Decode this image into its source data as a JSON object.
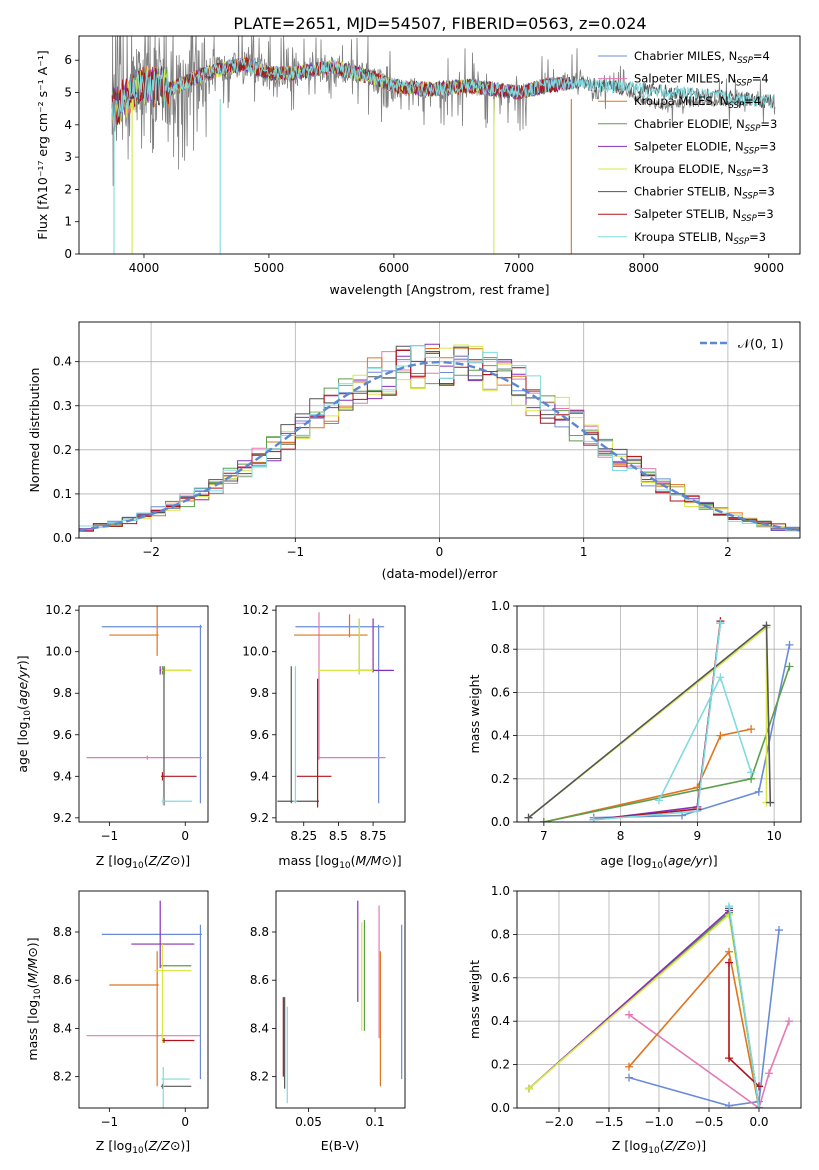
{
  "title": "PLATE=2651, MJD=54507, FIBERID=0563, z=0.024",
  "series_styles": [
    {
      "name": "Chabrier MILES",
      "nssp": "4",
      "color": "#6a8cd8"
    },
    {
      "name": "Salpeter MILES",
      "nssp": "4",
      "color": "#e47ab5"
    },
    {
      "name": "Kroupa MILES",
      "nssp": "4",
      "color": "#e0741e"
    },
    {
      "name": "Chabrier ELODIE",
      "nssp": "3",
      "color": "#5d9e4e"
    },
    {
      "name": "Salpeter ELODIE",
      "nssp": "3",
      "color": "#8b2fb8"
    },
    {
      "name": "Kroupa ELODIE",
      "nssp": "3",
      "color": "#d6e84a"
    },
    {
      "name": "Chabrier STELIB",
      "nssp": "3",
      "color": "#555555"
    },
    {
      "name": "Salpeter STELIB",
      "nssp": "3",
      "color": "#b0141a"
    },
    {
      "name": "Kroupa STELIB",
      "nssp": "3",
      "color": "#7fdbe0"
    }
  ],
  "chart_data": [
    {
      "id": "spectrum",
      "type": "line",
      "xlabel": "wavelength [Angstrom, rest frame]",
      "ylabel": "Flux [fλ10⁻¹⁷ erg cm⁻² s⁻¹ A⁻¹]",
      "xlim": [
        3480,
        9250
      ],
      "ylim": [
        0,
        6.75
      ],
      "xticks": [
        4000,
        5000,
        6000,
        7000,
        8000,
        9000
      ],
      "yticks": [
        0,
        1,
        2,
        3,
        4,
        5,
        6
      ],
      "legend": "upper right",
      "data_segment": {
        "x": [
          3750,
          4000,
          4200,
          4500,
          4800,
          5000,
          5200,
          5500,
          5800,
          6000,
          6300,
          6600,
          7000,
          7200,
          7500,
          7800,
          8100,
          8400,
          8700,
          9000
        ],
        "y": [
          4.6,
          5.4,
          5.0,
          5.6,
          5.9,
          5.5,
          5.6,
          5.8,
          5.5,
          5.1,
          5.1,
          5.2,
          5.0,
          5.2,
          5.4,
          5.1,
          4.6,
          4.7,
          4.7,
          4.7
        ]
      },
      "model_segment": {
        "x": [
          3750,
          4000,
          4200,
          4500,
          4800,
          5000,
          5200,
          5500,
          5800,
          6000,
          6300,
          6600,
          7000,
          7200,
          7420
        ],
        "y": [
          4.5,
          5.3,
          5.1,
          5.6,
          5.9,
          5.6,
          5.6,
          5.8,
          5.5,
          5.2,
          5.1,
          5.2,
          5.0,
          5.2,
          5.3
        ]
      }
    },
    {
      "id": "residual_hist",
      "type": "step",
      "xlabel": "(data-model)/error",
      "ylabel": "Normed distribution",
      "xlim": [
        -2.5,
        2.5
      ],
      "ylim": [
        0,
        0.49
      ],
      "xticks": [
        -2,
        -1,
        0,
        1,
        2
      ],
      "yticks": [
        0,
        0.1,
        0.2,
        0.3,
        0.4
      ],
      "bin_width": 0.1,
      "reference_label": "𝒩(0, 1)",
      "legend": "upper right"
    },
    {
      "id": "age_vs_Z",
      "type": "errorbar",
      "xlabel": "Z [log10(Z/Z⊙)]",
      "ylabel": "age  [log10(age/yr)]",
      "xlim": [
        -1.4,
        0.3
      ],
      "ylim": [
        9.18,
        10.22
      ],
      "xticks": [
        -1,
        0
      ],
      "yticks": [
        9.2,
        9.4,
        9.6,
        9.8,
        10.0,
        10.2
      ],
      "points": [
        {
          "x": 0.2,
          "y": 10.12,
          "xerr": [
            1.3,
            0.02
          ],
          "yerr": [
            0.85,
            0.01
          ]
        },
        {
          "x": -0.5,
          "y": 9.49,
          "xerr": [
            0.8,
            0.72
          ],
          "yerr": [
            0.01,
            0.01
          ]
        },
        {
          "x": -0.37,
          "y": 10.08,
          "xerr": [
            0.63,
            0.02
          ],
          "yerr": [
            0.1,
            0.9
          ]
        },
        {
          "x": -0.3,
          "y": 9.91,
          "xerr": [
            0.02,
            0.38
          ],
          "yerr": [
            0.02,
            0.02
          ]
        },
        {
          "x": -0.33,
          "y": 9.91,
          "xerr": [
            0.01,
            0.02
          ],
          "yerr": [
            0.02,
            0.02
          ]
        },
        {
          "x": -0.27,
          "y": 9.91,
          "xerr": [
            0.05,
            0.35
          ],
          "yerr": [
            0.02,
            0.02
          ]
        },
        {
          "x": -0.28,
          "y": 9.28,
          "xerr": [
            0.01,
            0.02
          ],
          "yerr": [
            0.02,
            0.65
          ]
        },
        {
          "x": -0.3,
          "y": 9.4,
          "xerr": [
            0.02,
            0.45
          ],
          "yerr": [
            0.02,
            0.02
          ]
        },
        {
          "x": -0.29,
          "y": 9.28,
          "xerr": [
            0.02,
            0.38
          ],
          "yerr": [
            0.02,
            0.02
          ]
        }
      ]
    },
    {
      "id": "age_vs_mass",
      "type": "errorbar",
      "xlabel": "mass [log10(M/M⊙)]",
      "ylabel": "",
      "xlim": [
        8.05,
        8.98
      ],
      "ylim": [
        9.18,
        10.22
      ],
      "xticks": [
        8.25,
        8.5,
        8.75
      ],
      "yticks": [
        9.2,
        9.4,
        9.6,
        9.8,
        10.0,
        10.2
      ],
      "points": [
        {
          "x": 8.79,
          "y": 10.12,
          "xerr": [
            0.6,
            0.04
          ],
          "yerr": [
            0.85,
            0.01
          ]
        },
        {
          "x": 8.36,
          "y": 9.49,
          "xerr": [
            0.01,
            0.48
          ],
          "yerr": [
            0.01,
            0.7
          ]
        },
        {
          "x": 8.58,
          "y": 10.08,
          "xerr": [
            0.4,
            0.13
          ],
          "yerr": [
            0.01,
            0.1
          ]
        },
        {
          "x": 8.65,
          "y": 9.91,
          "xerr": [
            0.01,
            0.01
          ],
          "yerr": [
            0.02,
            0.25
          ]
        },
        {
          "x": 8.75,
          "y": 9.91,
          "xerr": [
            0.1,
            0.15
          ],
          "yerr": [
            0.01,
            0.25
          ]
        },
        {
          "x": 8.65,
          "y": 9.91,
          "xerr": [
            0.3,
            0.1
          ],
          "yerr": [
            0.02,
            0.25
          ]
        },
        {
          "x": 8.16,
          "y": 9.28,
          "xerr": [
            0.1,
            0.2
          ],
          "yerr": [
            0.01,
            0.65
          ]
        },
        {
          "x": 8.35,
          "y": 9.4,
          "xerr": [
            0.15,
            0.1
          ],
          "yerr": [
            0.15,
            0.47
          ]
        },
        {
          "x": 8.19,
          "y": 9.28,
          "xerr": [
            0.02,
            0.01
          ],
          "yerr": [
            0.01,
            0.65
          ]
        }
      ]
    },
    {
      "id": "weight_vs_age",
      "type": "line",
      "xlabel": "age  [log10(age/yr)]",
      "ylabel": "mass weight",
      "xlim": [
        6.65,
        10.35
      ],
      "ylim": [
        0,
        1
      ],
      "xticks": [
        7,
        8,
        9,
        10
      ],
      "yticks": [
        0,
        0.2,
        0.4,
        0.6,
        0.8,
        1.0
      ],
      "series": [
        {
          "x": [
            7.65,
            8.8,
            9.8,
            10.2
          ],
          "y": [
            0.02,
            0.03,
            0.14,
            0.82
          ]
        },
        {
          "x": 7.0,
          "y": 0
        },
        {
          "x": [
            7.0,
            9.0,
            9.3,
            9.7
          ],
          "y": [
            0.0,
            0.16,
            0.4,
            0.43
          ]
        },
        {
          "x": [
            7.0,
            9.7,
            10.2
          ],
          "y": [
            0.0,
            0.2,
            0.72
          ]
        },
        {
          "x": [
            7.65,
            9.0,
            9.3
          ],
          "y": [
            0.01,
            0.07,
            0.92
          ]
        },
        {
          "x": [
            6.8,
            9.9,
            9.9
          ],
          "y": [
            0.02,
            0.9,
            0.09
          ]
        },
        {
          "x": [
            6.8,
            9.9,
            9.95
          ],
          "y": [
            0.02,
            0.91,
            0.09
          ]
        },
        {
          "x": [
            7.65,
            9.0,
            9.3
          ],
          "y": [
            0.01,
            0.06,
            0.93
          ]
        },
        {
          "x": [
            8.5,
            9.3,
            9.7
          ],
          "y": [
            0.1,
            0.67,
            0.23
          ]
        },
        {
          "x": [
            7.65,
            9.0,
            9.3
          ],
          "y": [
            0.01,
            0.05,
            0.92
          ]
        }
      ]
    },
    {
      "id": "mass_vs_Z",
      "type": "errorbar",
      "xlabel": "Z [log10(Z/Z⊙)]",
      "ylabel": "mass [log10(M/M⊙)]",
      "xlim": [
        -1.4,
        0.3
      ],
      "ylim": [
        8.07,
        8.97
      ],
      "xticks": [
        -1,
        0
      ],
      "yticks": [
        8.2,
        8.4,
        8.6,
        8.8
      ],
      "points": [
        {
          "x": 0.2,
          "y": 8.79,
          "xerr": [
            1.3,
            0.02
          ],
          "yerr": [
            0.6,
            0.04
          ]
        },
        {
          "x": -0.3,
          "y": 8.37,
          "xerr": [
            1.0,
            0.5
          ],
          "yerr": [
            0.01,
            0.01
          ]
        },
        {
          "x": -0.37,
          "y": 8.58,
          "xerr": [
            0.63,
            0.02
          ],
          "yerr": [
            0.42,
            0.14
          ]
        },
        {
          "x": -0.3,
          "y": 8.66,
          "xerr": [
            0.02,
            0.38
          ],
          "yerr": [
            0.01,
            0.01
          ]
        },
        {
          "x": -0.33,
          "y": 8.75,
          "xerr": [
            0.38,
            0.45
          ],
          "yerr": [
            0.1,
            0.18
          ]
        },
        {
          "x": -0.3,
          "y": 8.64,
          "xerr": [
            0.1,
            0.38
          ],
          "yerr": [
            0.3,
            0.11
          ]
        },
        {
          "x": -0.3,
          "y": 8.16,
          "xerr": [
            0.02,
            0.38
          ],
          "yerr": [
            0.01,
            0.01
          ]
        },
        {
          "x": -0.28,
          "y": 8.35,
          "xerr": [
            0.02,
            0.4
          ],
          "yerr": [
            0.01,
            0.01
          ]
        },
        {
          "x": -0.29,
          "y": 8.19,
          "xerr": [
            0.02,
            0.35
          ],
          "yerr": [
            0.2,
            0.05
          ]
        }
      ]
    },
    {
      "id": "mass_vs_EBV",
      "type": "errorbar",
      "xlabel": "E(B-V)",
      "ylabel": "",
      "xlim": [
        0.0255,
        0.1225
      ],
      "ylim": [
        8.07,
        8.97
      ],
      "xticks": [
        0.05,
        0.1
      ],
      "yticks": [
        8.2,
        8.4,
        8.6,
        8.8
      ],
      "points": [
        {
          "x": 0.12,
          "y": 8.79,
          "xerr": [
            0,
            0
          ],
          "yerr": [
            0.6,
            0.04
          ]
        },
        {
          "x": 0.103,
          "y": 8.37,
          "xerr": [
            0,
            0
          ],
          "yerr": [
            0.01,
            0.54
          ]
        },
        {
          "x": 0.104,
          "y": 8.58,
          "xerr": [
            0,
            0
          ],
          "yerr": [
            0.42,
            0.14
          ]
        },
        {
          "x": 0.092,
          "y": 8.66,
          "xerr": [
            0,
            0
          ],
          "yerr": [
            0.27,
            0.19
          ]
        },
        {
          "x": 0.087,
          "y": 8.75,
          "xerr": [
            0,
            0
          ],
          "yerr": [
            0.24,
            0.18
          ]
        },
        {
          "x": 0.09,
          "y": 8.64,
          "xerr": [
            0,
            0
          ],
          "yerr": [
            0.25,
            0.2
          ]
        },
        {
          "x": 0.032,
          "y": 8.16,
          "xerr": [
            0,
            0
          ],
          "yerr": [
            0.01,
            0.37
          ]
        },
        {
          "x": 0.031,
          "y": 8.35,
          "xerr": [
            0,
            0
          ],
          "yerr": [
            0.15,
            0.18
          ]
        },
        {
          "x": 0.034,
          "y": 8.19,
          "xerr": [
            0,
            0
          ],
          "yerr": [
            0.1,
            0.3
          ]
        }
      ]
    },
    {
      "id": "weight_vs_Z",
      "type": "line",
      "xlabel": "Z [log10(Z/Z⊙)]",
      "ylabel": "mass weight",
      "xlim": [
        -2.42,
        0.42
      ],
      "ylim": [
        0,
        1
      ],
      "xticks": [
        -2.0,
        -1.5,
        -1.0,
        -0.5,
        0.0
      ],
      "yticks": [
        0,
        0.2,
        0.4,
        0.6,
        0.8,
        1.0
      ],
      "series": [
        {
          "x": [
            -1.3,
            -0.3,
            0.0,
            0.2
          ],
          "y": [
            0.14,
            0.01,
            0.03,
            0.82
          ]
        },
        {
          "x": [
            -1.3,
            0.0,
            0.1,
            0.3
          ],
          "y": [
            0.43,
            0.0,
            0.16,
            0.4
          ]
        },
        {
          "x": [
            -1.3,
            -0.3,
            0.0
          ],
          "y": [
            0.19,
            0.72,
            0.0
          ]
        },
        {
          "x": [
            -2.3,
            -0.3,
            0.0
          ],
          "y": [
            0.09,
            0.9,
            0.0
          ]
        },
        {
          "x": [
            -2.3,
            -0.3,
            0.0
          ],
          "y": [
            0.09,
            0.91,
            0.0
          ]
        },
        {
          "x": [
            -2.3,
            -0.3,
            0.0
          ],
          "y": [
            0.09,
            0.89,
            0.0
          ]
        },
        {
          "x": [
            -0.3,
            0.0
          ],
          "y": [
            0.92,
            0.0
          ]
        },
        {
          "x": [
            -0.3,
            -0.3,
            0.0
          ],
          "y": [
            0.67,
            0.23,
            0.1
          ]
        },
        {
          "x": [
            -0.3,
            0.0
          ],
          "y": [
            0.93,
            0.0
          ]
        }
      ]
    }
  ]
}
